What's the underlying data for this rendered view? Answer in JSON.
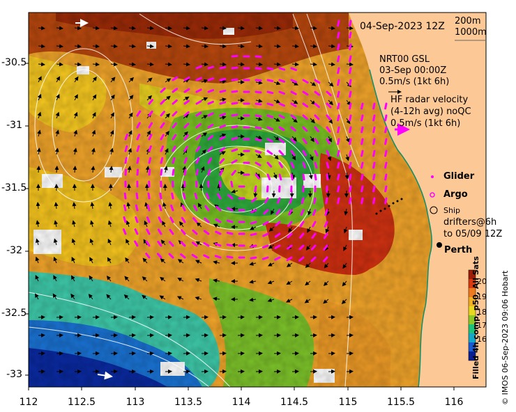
{
  "map": {
    "x_ticks": [
      "112",
      "112.5",
      "113",
      "113.5",
      "114",
      "114.5",
      "115",
      "115.5",
      "116"
    ],
    "y_ticks": [
      "-30.5",
      "-31",
      "-31.5",
      "-32",
      "-32.5",
      "-33"
    ],
    "lon_range": [
      112,
      116.3
    ],
    "lat_range": [
      -33.2,
      -30.1
    ]
  },
  "legend": {
    "date": "04-Sep-2023 12Z",
    "contour_1": "200m",
    "contour_2": "1000m",
    "gsl_line1": "NRT00 GSL",
    "gsl_line2": "03-Sep 00:00Z",
    "gsl_line3": "0.5m/s (1kt 6h)",
    "hf_line1": "HF radar velocity",
    "hf_line2": "(4-12h avg) noQC",
    "hf_line3": "0.5m/s (1kt 6h)",
    "glider": "Glider",
    "argo": "Argo",
    "ship": "Ship",
    "drifters_line1": "drifters@6h",
    "drifters_line2": "to 05/09 12Z",
    "city": "Perth"
  },
  "colorbar": {
    "ticks": [
      "20",
      "19",
      "18",
      "17",
      "16"
    ],
    "title": "Filled 4h comp, p50, All Sats",
    "colors": {
      "land": "#fcc896",
      "hf_arrow": "#ff00ff",
      "current_arrow": "#000000",
      "contour": "#ffffff"
    }
  },
  "credit": "© IMOS 06-Sep-2023 09:06 Hobart"
}
